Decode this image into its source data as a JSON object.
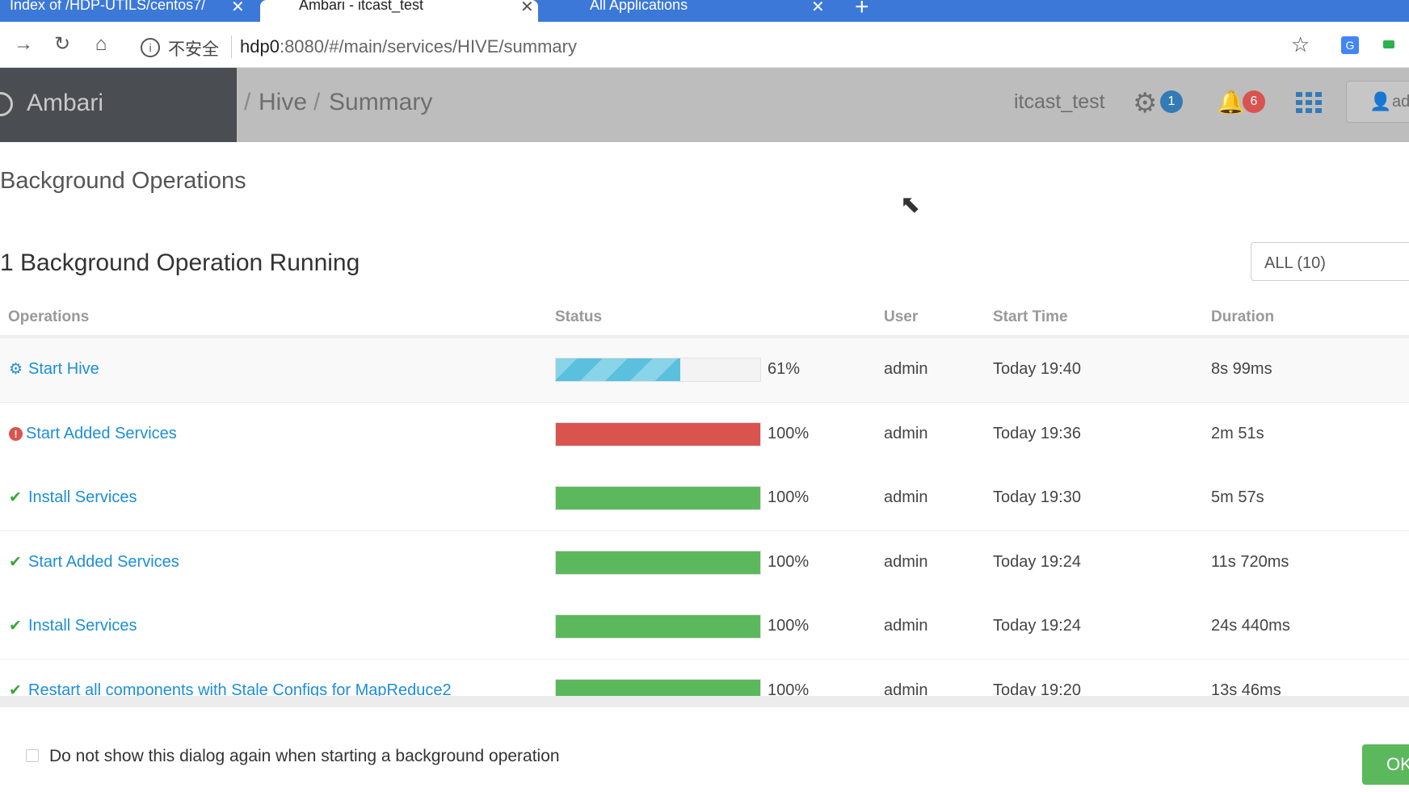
{
  "browser": {
    "tabs": [
      {
        "label": "Index of /HDP-UTILS/centos7/"
      },
      {
        "label": "Ambari - itcast_test"
      },
      {
        "label": "All Applications"
      }
    ],
    "new_tab": "+",
    "insecure_label": "不安全",
    "url_host": "hdp0",
    "url_path": ":8080/#/main/services/HIVE/summary"
  },
  "header": {
    "brand": "Ambari",
    "breadcrumb_sep": "/",
    "breadcrumb_service": "Hive",
    "breadcrumb_page": "Summary",
    "cluster": "itcast_test",
    "ops_count": "1",
    "alerts_count": "6",
    "user": "ad"
  },
  "modal": {
    "title": "Background Operations",
    "running_text": "1 Background Operation Running",
    "filter": "ALL (10)",
    "columns": [
      "Operations",
      "Status",
      "User",
      "Start Time",
      "Duration"
    ],
    "rows": [
      {
        "icon": "gears-icon",
        "name": "Start Hive",
        "progress": 61,
        "progress_label": "61%",
        "status": "info",
        "user": "admin",
        "start": "Today 19:40",
        "duration": "8s 99ms"
      },
      {
        "icon": "error-icon",
        "name": "Start Added Services",
        "progress": 100,
        "progress_label": "100%",
        "status": "danger",
        "user": "admin",
        "start": "Today 19:36",
        "duration": "2m 51s"
      },
      {
        "icon": "check-icon",
        "name": "Install Services",
        "progress": 100,
        "progress_label": "100%",
        "status": "success",
        "user": "admin",
        "start": "Today 19:30",
        "duration": "5m 57s"
      },
      {
        "icon": "check-icon",
        "name": "Start Added Services",
        "progress": 100,
        "progress_label": "100%",
        "status": "success",
        "user": "admin",
        "start": "Today 19:24",
        "duration": "11s 720ms"
      },
      {
        "icon": "check-icon",
        "name": "Install Services",
        "progress": 100,
        "progress_label": "100%",
        "status": "success",
        "user": "admin",
        "start": "Today 19:24",
        "duration": "24s 440ms"
      },
      {
        "icon": "check-icon",
        "name": "Restart all components with Stale Configs for MapReduce2",
        "progress": 100,
        "progress_label": "100%",
        "status": "success",
        "user": "admin",
        "start": "Today 19:20",
        "duration": "13s 46ms"
      }
    ],
    "dont_show_label": "Do not show this dialog again when starting a background operation",
    "ok_label": "OK"
  },
  "colors": {
    "link": "#1d8ed6",
    "success": "#5cb85c",
    "danger": "#d9534f",
    "info": "#5bc0de",
    "tab_strip": "#3c78d8"
  }
}
